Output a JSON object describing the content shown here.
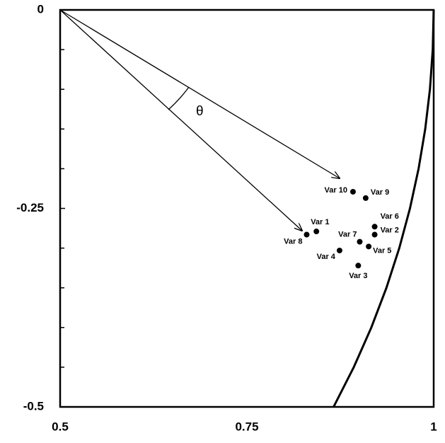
{
  "chart_data": {
    "type": "scatter",
    "annotation": "θ",
    "xlim": [
      0.5,
      1
    ],
    "xticks": [
      0.5,
      0.75,
      1
    ],
    "ylim": [
      -0.5,
      0
    ],
    "yticks": [
      -0.5,
      -0.25,
      0
    ],
    "yminorticks": [
      -0.45,
      -0.4,
      -0.35,
      -0.3,
      -0.2,
      -0.15,
      -0.1,
      -0.05
    ],
    "color": "#000000",
    "labels": [
      "Var 10",
      "Var 9",
      "Var 6",
      "Var 2",
      "Var 1",
      "Var 8",
      "Var 7",
      "Var 5",
      "Var 4",
      "Var 3"
    ],
    "x": [
      0.892,
      0.909,
      0.921,
      0.921,
      0.843,
      0.83,
      0.901,
      0.913,
      0.874,
      0.899
    ],
    "values": [
      -0.229,
      -0.237,
      -0.273,
      -0.283,
      -0.279,
      -0.283,
      -0.292,
      -0.298,
      -0.303,
      -0.322
    ],
    "curve": {
      "x": [
        1,
        0.99875,
        0.99499,
        0.98869,
        0.9798,
        0.96825,
        0.95394,
        0.93675,
        0.91652,
        0.89303,
        0.86603
      ],
      "values": [
        0,
        -0.05,
        -0.1,
        -0.15,
        -0.2,
        -0.25,
        -0.3,
        -0.35,
        -0.4,
        -0.45,
        -0.5
      ]
    }
  }
}
